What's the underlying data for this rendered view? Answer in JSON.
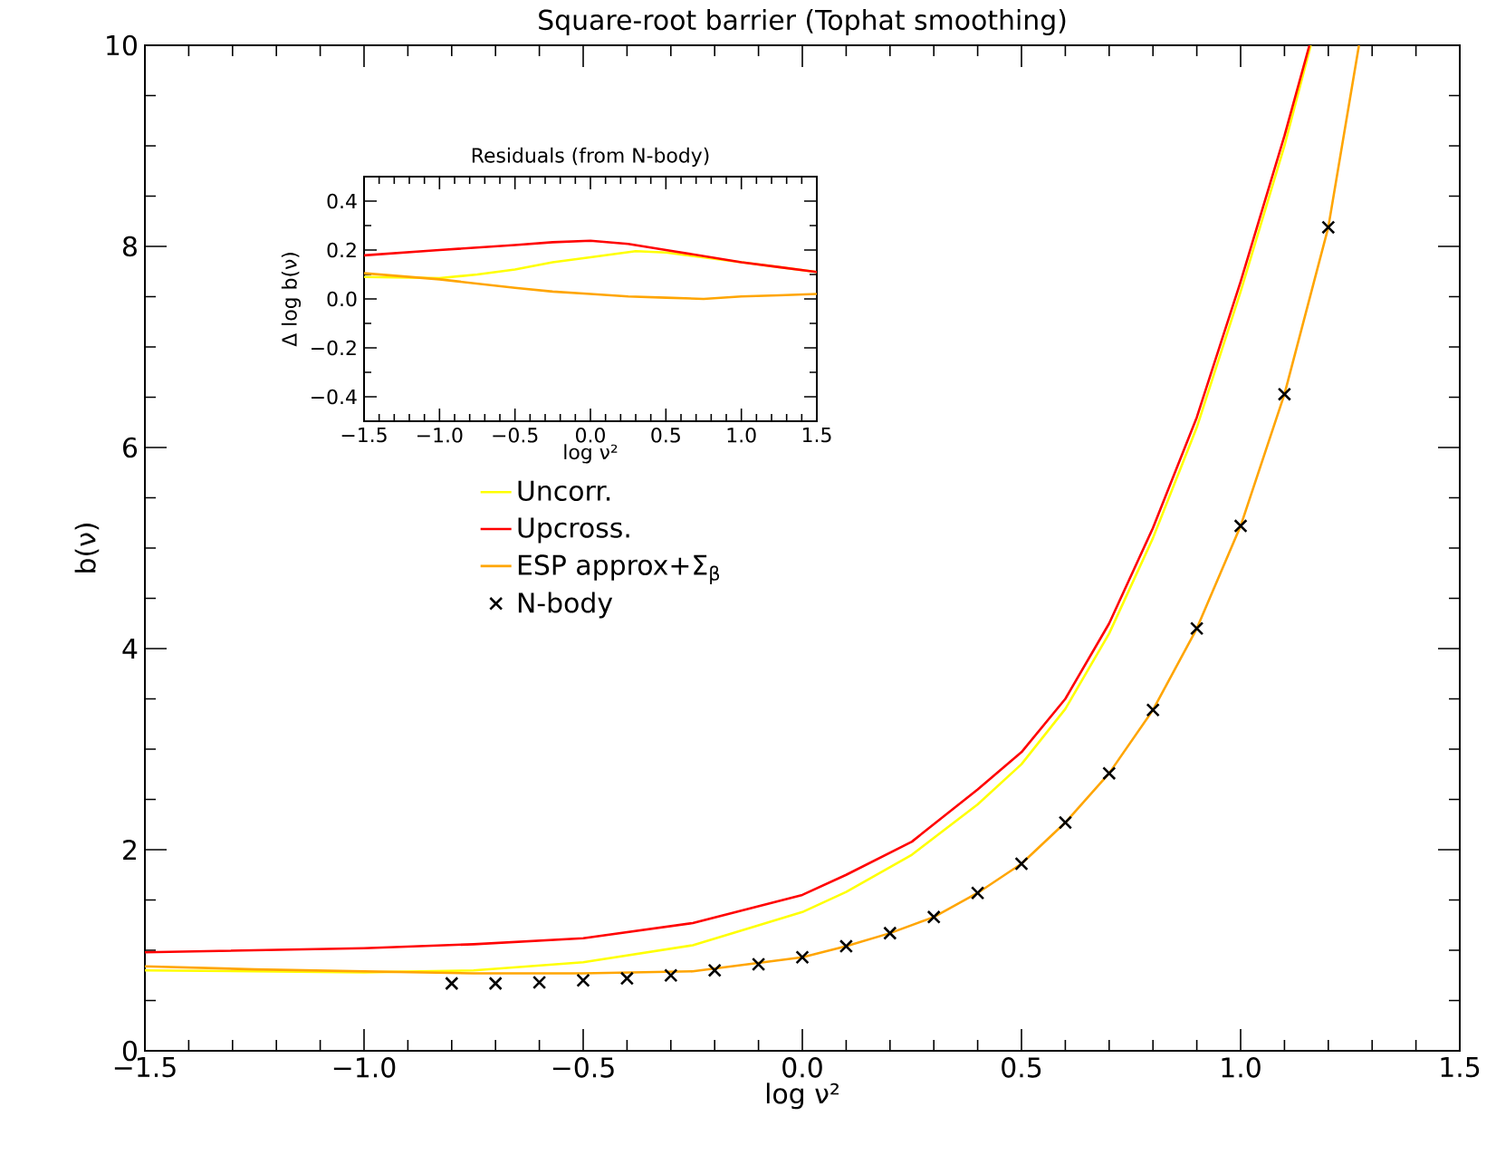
{
  "chart_data": [
    {
      "type": "line",
      "title": "Square-root barrier (Tophat smoothing)",
      "xlabel": "log ν²",
      "ylabel": "b(ν)",
      "xlim": [
        -1.5,
        1.5
      ],
      "ylim": [
        0,
        10
      ],
      "xticks": [
        {
          "value": -1.5,
          "label": "−1.5"
        },
        {
          "value": -1.0,
          "label": "−1.0"
        },
        {
          "value": -0.5,
          "label": "−0.5"
        },
        {
          "value": 0,
          "label": "0.0"
        },
        {
          "value": 0.5,
          "label": "0.5"
        },
        {
          "value": 1.0,
          "label": "1.0"
        },
        {
          "value": 1.5,
          "label": "1.5"
        }
      ],
      "yticks": [
        0,
        2,
        4,
        6,
        8,
        10
      ],
      "legend": "center",
      "marker": "none",
      "series": [
        {
          "name": "Uncorr.",
          "color": "#ffff00",
          "x": [
            -1.5,
            -1.0,
            -0.75,
            -0.5,
            -0.25,
            0,
            0.1,
            0.25,
            0.4,
            0.5,
            0.6,
            0.7,
            0.8,
            0.9,
            1.0,
            1.1,
            1.16
          ],
          "values": [
            0.8,
            0.78,
            0.8,
            0.88,
            1.05,
            1.38,
            1.58,
            1.95,
            2.45,
            2.85,
            3.4,
            4.15,
            5.1,
            6.2,
            7.55,
            9.0,
            10
          ]
        },
        {
          "name": "Upcross.",
          "color": "#ff0000",
          "x": [
            -1.5,
            -1.0,
            -0.75,
            -0.5,
            -0.25,
            0,
            0.1,
            0.25,
            0.4,
            0.5,
            0.6,
            0.7,
            0.8,
            0.9,
            1.0,
            1.1,
            1.157
          ],
          "values": [
            0.98,
            1.02,
            1.06,
            1.12,
            1.27,
            1.55,
            1.75,
            2.08,
            2.6,
            2.97,
            3.5,
            4.25,
            5.2,
            6.3,
            7.65,
            9.1,
            10
          ]
        },
        {
          "name": "ESP approx+Σ$_{β}$",
          "color": "#ffa500",
          "x": [
            -1.5,
            -1.25,
            -1.0,
            -0.75,
            -0.5,
            -0.25,
            0,
            0.1,
            0.2,
            0.3,
            0.4,
            0.5,
            0.6,
            0.7,
            0.8,
            0.9,
            1.0,
            1.1,
            1.2,
            1.27
          ],
          "values": [
            0.84,
            0.81,
            0.79,
            0.77,
            0.77,
            0.79,
            0.93,
            1.04,
            1.17,
            1.33,
            1.57,
            1.86,
            2.27,
            2.76,
            3.39,
            4.2,
            5.22,
            6.53,
            8.19,
            10
          ]
        },
        {
          "name": "N-body",
          "type": "scatter",
          "marker": "cross",
          "color": "#000000",
          "x": [
            -0.8,
            -0.7,
            -0.6,
            -0.5,
            -0.4,
            -0.3,
            -0.2,
            -0.1,
            0.0,
            0.1,
            0.2,
            0.3,
            0.4,
            0.5,
            0.6,
            0.7,
            0.8,
            0.9,
            1.0,
            1.1,
            1.2
          ],
          "values": [
            0.67,
            0.67,
            0.68,
            0.7,
            0.72,
            0.75,
            0.8,
            0.86,
            0.93,
            1.04,
            1.17,
            1.33,
            1.57,
            1.86,
            2.27,
            2.76,
            3.39,
            4.2,
            5.22,
            6.53,
            8.19
          ]
        }
      ]
    },
    {
      "type": "line",
      "title": "Residuals (from N-body)",
      "xlabel": "log ν²",
      "ylabel": "Δ log b(ν)",
      "xlim": [
        -1.5,
        1.5
      ],
      "ylim": [
        -0.5,
        0.5
      ],
      "xticks": [
        {
          "value": -1.5,
          "label": "−1.5"
        },
        {
          "value": -1.0,
          "label": "−1.0"
        },
        {
          "value": -0.5,
          "label": "−0.5"
        },
        {
          "value": 0,
          "label": "0.0"
        },
        {
          "value": 0.5,
          "label": "0.5"
        },
        {
          "value": 1.0,
          "label": "1.0"
        },
        {
          "value": 1.5,
          "label": "1.5"
        }
      ],
      "yticks": [
        {
          "value": -0.4,
          "label": "−0.4"
        },
        {
          "value": -0.2,
          "label": "−0.2"
        },
        {
          "value": 0,
          "label": "0.0"
        },
        0.2,
        0.4
      ],
      "marker": "none",
      "series": [
        {
          "color": "#ffff00",
          "x": [
            -1.5,
            -1.0,
            -0.75,
            -0.5,
            -0.25,
            0,
            0.3,
            0.5,
            0.75,
            1.0,
            1.25,
            1.5
          ],
          "values": [
            0.09,
            0.085,
            0.1,
            0.12,
            0.15,
            0.17,
            0.195,
            0.19,
            0.17,
            0.15,
            0.13,
            0.11
          ]
        },
        {
          "color": "#ff0000",
          "x": [
            -1.5,
            -1.0,
            -0.5,
            -0.25,
            0,
            0.25,
            0.5,
            0.75,
            1.0,
            1.25,
            1.5
          ],
          "values": [
            0.178,
            0.2,
            0.22,
            0.232,
            0.238,
            0.225,
            0.2,
            0.175,
            0.15,
            0.13,
            0.11
          ]
        },
        {
          "color": "#ffa500",
          "x": [
            -1.5,
            -1.0,
            -0.5,
            -0.25,
            0,
            0.25,
            0.5,
            0.75,
            1.0,
            1.25,
            1.5
          ],
          "values": [
            0.105,
            0.08,
            0.045,
            0.03,
            0.02,
            0.01,
            0.005,
            0.0,
            0.01,
            0.015,
            0.02
          ]
        }
      ]
    }
  ]
}
